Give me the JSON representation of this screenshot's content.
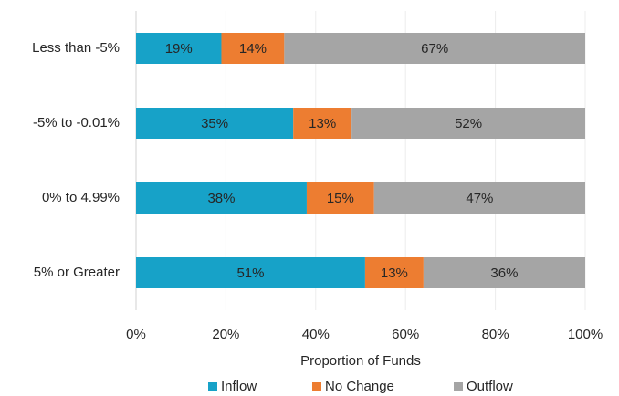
{
  "chart_data": {
    "type": "stacked-barh",
    "categories": [
      "Less than -5%",
      "-5% to -0.01%",
      "0% to 4.99%",
      "5% or Greater"
    ],
    "series": [
      {
        "name": "Inflow",
        "color": "#17a2c8",
        "values": [
          19,
          35,
          38,
          51
        ],
        "value_labels": [
          "19%",
          "35%",
          "38%",
          "51%"
        ]
      },
      {
        "name": "No Change",
        "color": "#ed7d31",
        "values": [
          14,
          13,
          15,
          13
        ],
        "value_labels": [
          "14%",
          "13%",
          "15%",
          "13%"
        ]
      },
      {
        "name": "Outflow",
        "color": "#a5a5a5",
        "values": [
          67,
          52,
          47,
          36
        ],
        "value_labels": [
          "67%",
          "52%",
          "47%",
          "36%"
        ]
      }
    ],
    "xlabel": "Proportion of Funds",
    "xlim": [
      0,
      100
    ],
    "xticks": [
      {
        "value": 0,
        "label": "0%"
      },
      {
        "value": 20,
        "label": "20%"
      },
      {
        "value": 40,
        "label": "40%"
      },
      {
        "value": 60,
        "label": "60%"
      },
      {
        "value": 80,
        "label": "80%"
      },
      {
        "value": 100,
        "label": "100%"
      }
    ],
    "grid": true,
    "legend": "bottom"
  }
}
